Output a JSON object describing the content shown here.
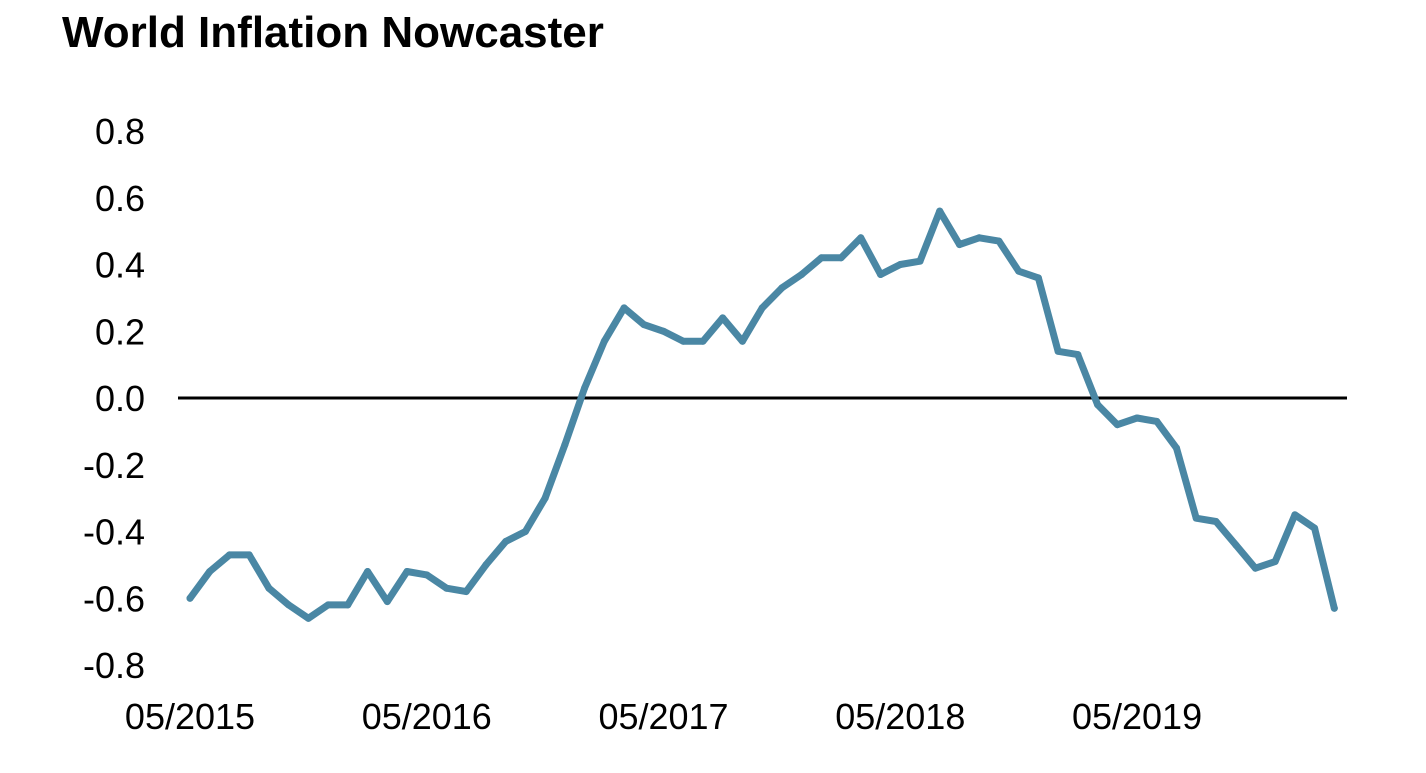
{
  "chart_data": {
    "type": "line",
    "title": "World Inflation Nowcaster",
    "xlabel": "",
    "ylabel": "",
    "ylim": [
      -0.8,
      0.8
    ],
    "yticks": [
      0.8,
      0.6,
      0.4,
      0.2,
      0.0,
      -0.2,
      -0.4,
      -0.6,
      -0.8
    ],
    "ytick_labels": [
      "0.8",
      "0.6",
      "0.4",
      "0.2",
      "0.0",
      "-0.2",
      "-0.4",
      "-0.6",
      "-0.8"
    ],
    "xticks": [
      "05/2015",
      "05/2016",
      "05/2017",
      "05/2018",
      "05/2019"
    ],
    "x_start": "05/2015",
    "x_end": "03/2020",
    "grid": false,
    "zero_line": true,
    "colors": {
      "series": "#4a87a4",
      "zero_line": "#000000",
      "text": "#000000"
    },
    "series": [
      {
        "name": "",
        "x": [
          "05/2015",
          "06/2015",
          "07/2015",
          "08/2015",
          "09/2015",
          "10/2015",
          "11/2015",
          "12/2015",
          "01/2016",
          "02/2016",
          "03/2016",
          "04/2016",
          "05/2016",
          "06/2016",
          "07/2016",
          "08/2016",
          "09/2016",
          "10/2016",
          "11/2016",
          "12/2016",
          "01/2017",
          "02/2017",
          "03/2017",
          "04/2017",
          "05/2017",
          "06/2017",
          "07/2017",
          "08/2017",
          "09/2017",
          "10/2017",
          "11/2017",
          "12/2017",
          "01/2018",
          "02/2018",
          "03/2018",
          "04/2018",
          "05/2018",
          "06/2018",
          "07/2018",
          "08/2018",
          "09/2018",
          "10/2018",
          "11/2018",
          "12/2018",
          "01/2019",
          "02/2019",
          "03/2019",
          "04/2019",
          "05/2019",
          "06/2019",
          "07/2019",
          "08/2019",
          "09/2019",
          "10/2019",
          "11/2019",
          "12/2019",
          "01/2020",
          "02/2020",
          "03/2020"
        ],
        "values": [
          -0.6,
          -0.52,
          -0.47,
          -0.47,
          -0.57,
          -0.62,
          -0.66,
          -0.62,
          -0.62,
          -0.52,
          -0.61,
          -0.52,
          -0.53,
          -0.57,
          -0.58,
          -0.5,
          -0.43,
          -0.4,
          -0.3,
          -0.14,
          0.03,
          0.17,
          0.27,
          0.22,
          0.2,
          0.17,
          0.17,
          0.24,
          0.17,
          0.27,
          0.33,
          0.37,
          0.42,
          0.42,
          0.48,
          0.37,
          0.4,
          0.41,
          0.56,
          0.46,
          0.48,
          0.47,
          0.38,
          0.36,
          0.14,
          0.13,
          -0.02,
          -0.08,
          -0.06,
          -0.07,
          -0.15,
          -0.36,
          -0.37,
          -0.44,
          -0.51,
          -0.49,
          -0.35,
          -0.39,
          -0.63
        ]
      }
    ]
  }
}
